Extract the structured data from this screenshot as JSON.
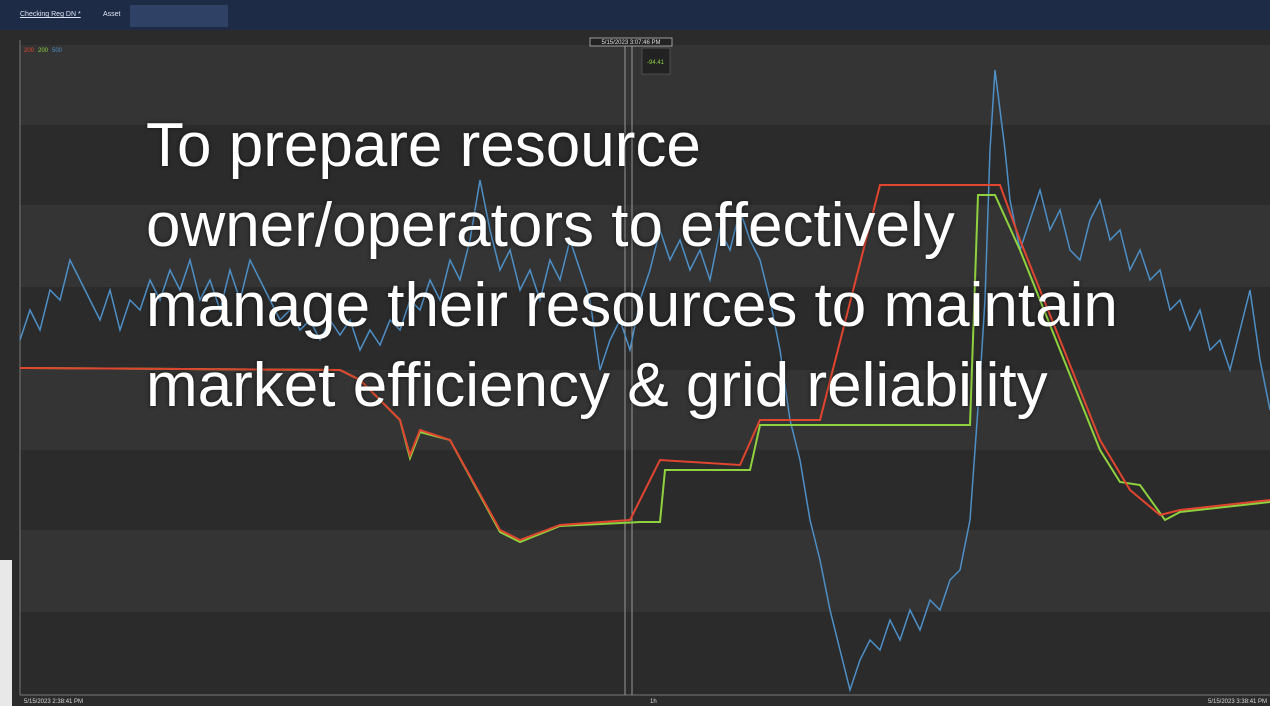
{
  "header": {
    "tab": "Checking Reg DN *",
    "asset": "Asset"
  },
  "chart": {
    "legend": [
      "200",
      "200",
      "500"
    ],
    "cursor_time": "5/15/2023 3:07:46 PM",
    "cursor_value": "-94.41",
    "x_start": "5/15/2023 2:38:41 PM",
    "x_mid": "1h",
    "x_end": "5/15/2023 3:38:41 PM"
  },
  "overlay_text": "To prepare resource owner/operators to effectively manage their resources to maintain market efficiency & grid reliability"
}
